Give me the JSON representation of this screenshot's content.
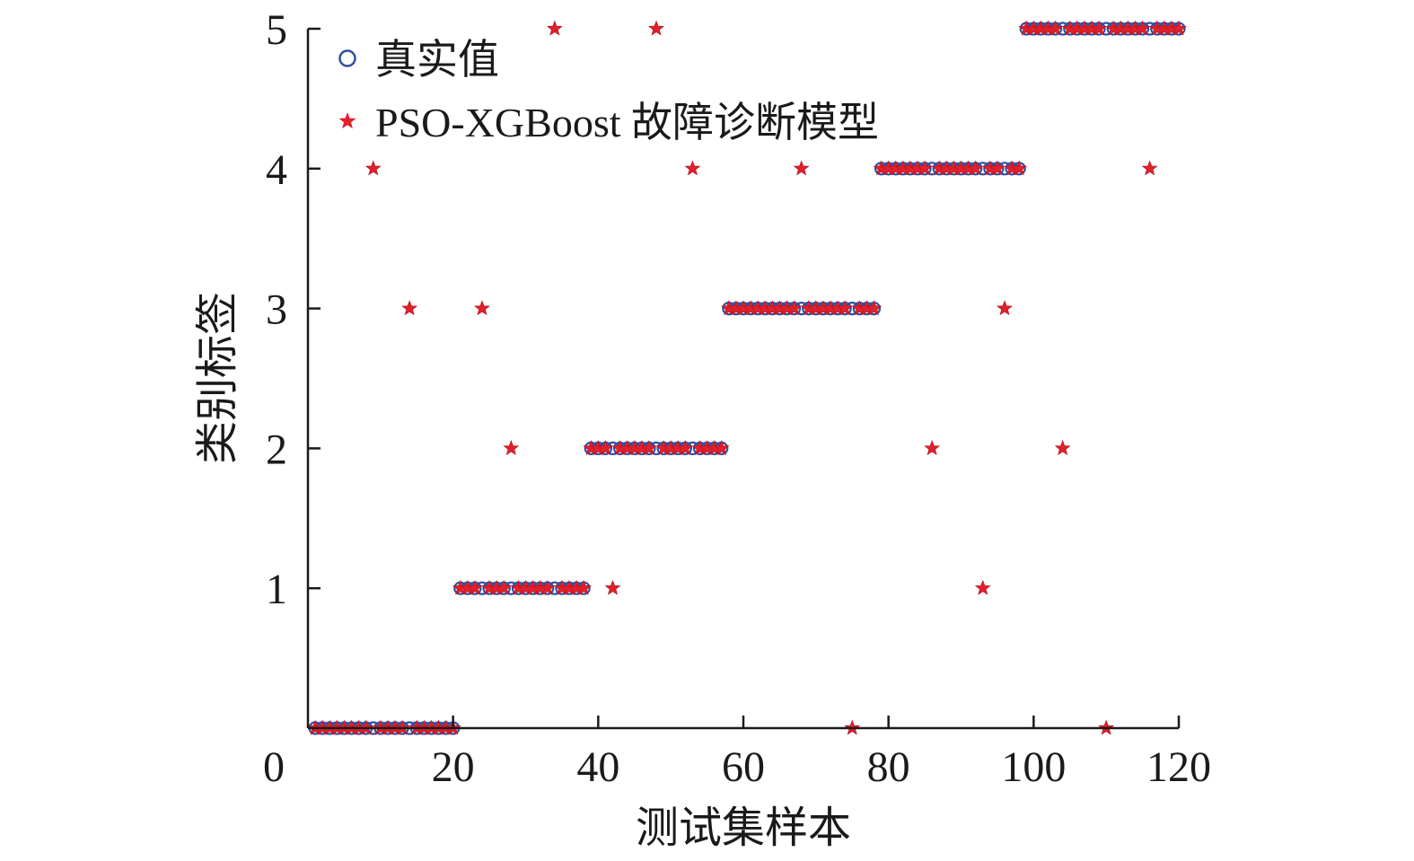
{
  "chart_data": {
    "type": "scatter",
    "title": "",
    "xlabel": "测试集样本",
    "ylabel": "类别标签",
    "xlim": [
      0,
      120
    ],
    "ylim": [
      0,
      5
    ],
    "xticks": [
      "0",
      "20",
      "40",
      "60",
      "80",
      "100",
      "120"
    ],
    "yticks": [
      "1",
      "2",
      "3",
      "4",
      "5"
    ],
    "grid": false,
    "legend_position": "top-left",
    "series": [
      {
        "name": "真实值",
        "marker": "circle",
        "color": "#2f4fa0",
        "points": [
          [
            1,
            0
          ],
          [
            2,
            0
          ],
          [
            3,
            0
          ],
          [
            4,
            0
          ],
          [
            5,
            0
          ],
          [
            6,
            0
          ],
          [
            7,
            0
          ],
          [
            8,
            0
          ],
          [
            9,
            0
          ],
          [
            10,
            0
          ],
          [
            11,
            0
          ],
          [
            12,
            0
          ],
          [
            13,
            0
          ],
          [
            14,
            0
          ],
          [
            15,
            0
          ],
          [
            16,
            0
          ],
          [
            17,
            0
          ],
          [
            18,
            0
          ],
          [
            19,
            0
          ],
          [
            20,
            0
          ],
          [
            21,
            1
          ],
          [
            22,
            1
          ],
          [
            23,
            1
          ],
          [
            24,
            1
          ],
          [
            25,
            1
          ],
          [
            26,
            1
          ],
          [
            27,
            1
          ],
          [
            28,
            1
          ],
          [
            29,
            1
          ],
          [
            30,
            1
          ],
          [
            31,
            1
          ],
          [
            32,
            1
          ],
          [
            33,
            1
          ],
          [
            34,
            1
          ],
          [
            35,
            1
          ],
          [
            36,
            1
          ],
          [
            37,
            1
          ],
          [
            38,
            1
          ],
          [
            39,
            2
          ],
          [
            40,
            2
          ],
          [
            41,
            2
          ],
          [
            42,
            2
          ],
          [
            43,
            2
          ],
          [
            44,
            2
          ],
          [
            45,
            2
          ],
          [
            46,
            2
          ],
          [
            47,
            2
          ],
          [
            48,
            2
          ],
          [
            49,
            2
          ],
          [
            50,
            2
          ],
          [
            51,
            2
          ],
          [
            52,
            2
          ],
          [
            53,
            2
          ],
          [
            54,
            2
          ],
          [
            55,
            2
          ],
          [
            56,
            2
          ],
          [
            57,
            2
          ],
          [
            58,
            3
          ],
          [
            59,
            3
          ],
          [
            60,
            3
          ],
          [
            61,
            3
          ],
          [
            62,
            3
          ],
          [
            63,
            3
          ],
          [
            64,
            3
          ],
          [
            65,
            3
          ],
          [
            66,
            3
          ],
          [
            67,
            3
          ],
          [
            68,
            3
          ],
          [
            69,
            3
          ],
          [
            70,
            3
          ],
          [
            71,
            3
          ],
          [
            72,
            3
          ],
          [
            73,
            3
          ],
          [
            74,
            3
          ],
          [
            75,
            3
          ],
          [
            76,
            3
          ],
          [
            77,
            3
          ],
          [
            78,
            3
          ],
          [
            79,
            4
          ],
          [
            80,
            4
          ],
          [
            81,
            4
          ],
          [
            82,
            4
          ],
          [
            83,
            4
          ],
          [
            84,
            4
          ],
          [
            85,
            4
          ],
          [
            86,
            4
          ],
          [
            87,
            4
          ],
          [
            88,
            4
          ],
          [
            89,
            4
          ],
          [
            90,
            4
          ],
          [
            91,
            4
          ],
          [
            92,
            4
          ],
          [
            93,
            4
          ],
          [
            94,
            4
          ],
          [
            95,
            4
          ],
          [
            96,
            4
          ],
          [
            97,
            4
          ],
          [
            98,
            4
          ],
          [
            99,
            5
          ],
          [
            100,
            5
          ],
          [
            101,
            5
          ],
          [
            102,
            5
          ],
          [
            103,
            5
          ],
          [
            104,
            5
          ],
          [
            105,
            5
          ],
          [
            106,
            5
          ],
          [
            107,
            5
          ],
          [
            108,
            5
          ],
          [
            109,
            5
          ],
          [
            110,
            5
          ],
          [
            111,
            5
          ],
          [
            112,
            5
          ],
          [
            113,
            5
          ],
          [
            114,
            5
          ],
          [
            115,
            5
          ],
          [
            116,
            5
          ],
          [
            117,
            5
          ],
          [
            118,
            5
          ],
          [
            119,
            5
          ],
          [
            120,
            5
          ]
        ]
      },
      {
        "name": "PSO-XGBoost 故障诊断模型",
        "marker": "star",
        "color": "#e0202c",
        "points": [
          [
            1,
            0
          ],
          [
            2,
            0
          ],
          [
            3,
            0
          ],
          [
            4,
            0
          ],
          [
            5,
            0
          ],
          [
            6,
            0
          ],
          [
            7,
            0
          ],
          [
            8,
            0
          ],
          [
            9,
            4
          ],
          [
            10,
            0
          ],
          [
            11,
            0
          ],
          [
            12,
            0
          ],
          [
            13,
            0
          ],
          [
            14,
            3
          ],
          [
            15,
            0
          ],
          [
            16,
            0
          ],
          [
            17,
            0
          ],
          [
            18,
            0
          ],
          [
            19,
            0
          ],
          [
            20,
            0
          ],
          [
            21,
            1
          ],
          [
            22,
            1
          ],
          [
            23,
            1
          ],
          [
            24,
            3
          ],
          [
            25,
            1
          ],
          [
            26,
            1
          ],
          [
            27,
            1
          ],
          [
            28,
            2
          ],
          [
            29,
            1
          ],
          [
            30,
            1
          ],
          [
            31,
            1
          ],
          [
            32,
            1
          ],
          [
            33,
            1
          ],
          [
            34,
            5
          ],
          [
            35,
            1
          ],
          [
            36,
            1
          ],
          [
            37,
            1
          ],
          [
            38,
            1
          ],
          [
            39,
            2
          ],
          [
            40,
            2
          ],
          [
            41,
            2
          ],
          [
            42,
            1
          ],
          [
            43,
            2
          ],
          [
            44,
            2
          ],
          [
            45,
            2
          ],
          [
            46,
            2
          ],
          [
            47,
            2
          ],
          [
            48,
            5
          ],
          [
            49,
            2
          ],
          [
            50,
            2
          ],
          [
            51,
            2
          ],
          [
            52,
            2
          ],
          [
            53,
            4
          ],
          [
            54,
            2
          ],
          [
            55,
            2
          ],
          [
            56,
            2
          ],
          [
            57,
            2
          ],
          [
            58,
            3
          ],
          [
            59,
            3
          ],
          [
            60,
            3
          ],
          [
            61,
            3
          ],
          [
            62,
            3
          ],
          [
            63,
            3
          ],
          [
            64,
            3
          ],
          [
            65,
            3
          ],
          [
            66,
            3
          ],
          [
            67,
            3
          ],
          [
            68,
            4
          ],
          [
            69,
            3
          ],
          [
            70,
            3
          ],
          [
            71,
            3
          ],
          [
            72,
            3
          ],
          [
            73,
            3
          ],
          [
            74,
            3
          ],
          [
            75,
            0
          ],
          [
            76,
            3
          ],
          [
            77,
            3
          ],
          [
            78,
            3
          ],
          [
            79,
            4
          ],
          [
            80,
            4
          ],
          [
            81,
            4
          ],
          [
            82,
            4
          ],
          [
            83,
            4
          ],
          [
            84,
            4
          ],
          [
            85,
            4
          ],
          [
            86,
            2
          ],
          [
            87,
            4
          ],
          [
            88,
            4
          ],
          [
            89,
            4
          ],
          [
            90,
            4
          ],
          [
            91,
            4
          ],
          [
            92,
            4
          ],
          [
            93,
            1
          ],
          [
            94,
            4
          ],
          [
            95,
            4
          ],
          [
            96,
            3
          ],
          [
            97,
            4
          ],
          [
            98,
            4
          ],
          [
            99,
            5
          ],
          [
            100,
            5
          ],
          [
            101,
            5
          ],
          [
            102,
            5
          ],
          [
            103,
            5
          ],
          [
            104,
            2
          ],
          [
            105,
            5
          ],
          [
            106,
            5
          ],
          [
            107,
            5
          ],
          [
            108,
            5
          ],
          [
            109,
            5
          ],
          [
            110,
            0
          ],
          [
            111,
            5
          ],
          [
            112,
            5
          ],
          [
            113,
            5
          ],
          [
            114,
            5
          ],
          [
            115,
            5
          ],
          [
            116,
            4
          ],
          [
            117,
            5
          ],
          [
            118,
            5
          ],
          [
            119,
            5
          ],
          [
            120,
            5
          ]
        ]
      }
    ]
  }
}
